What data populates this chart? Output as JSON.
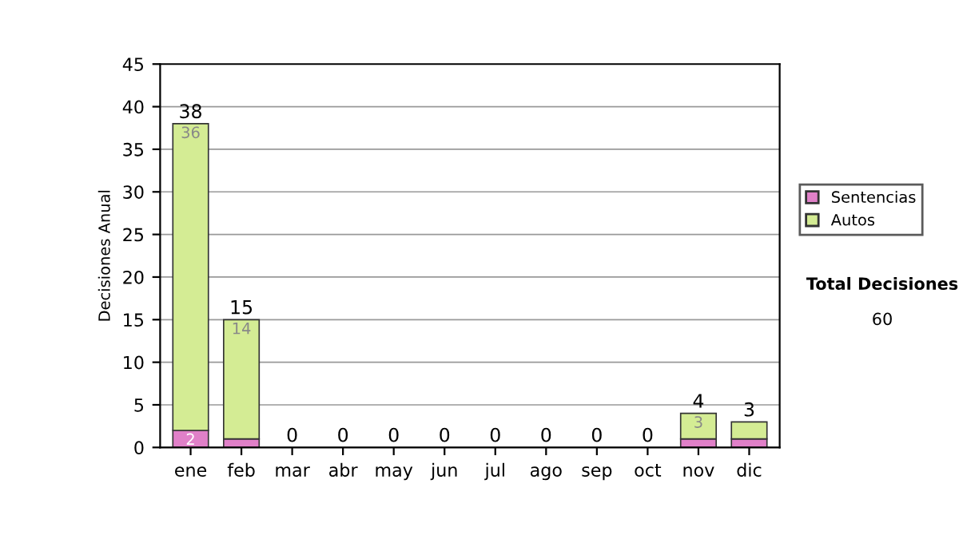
{
  "chart_data": {
    "type": "bar",
    "stacked": true,
    "ylabel": "Decisiones Anual",
    "categories": [
      "ene",
      "feb",
      "mar",
      "abr",
      "may",
      "jun",
      "jul",
      "ago",
      "sep",
      "oct",
      "nov",
      "dic"
    ],
    "series": [
      {
        "name": "Sentencias",
        "color": "#e080c8",
        "values": [
          2,
          1,
          0,
          0,
          0,
          0,
          0,
          0,
          0,
          0,
          1,
          1
        ],
        "value_labels": [
          "2",
          null,
          null,
          null,
          null,
          null,
          null,
          null,
          null,
          null,
          null,
          null
        ]
      },
      {
        "name": "Autos",
        "color": "#d4ec94",
        "values": [
          36,
          14,
          0,
          0,
          0,
          0,
          0,
          0,
          0,
          0,
          3,
          2
        ],
        "value_labels": [
          "36",
          "14",
          null,
          null,
          null,
          null,
          null,
          null,
          null,
          null,
          "3",
          null
        ]
      }
    ],
    "totals": [
      "38",
      "15",
      "0",
      "0",
      "0",
      "0",
      "0",
      "0",
      "0",
      "0",
      "4",
      "3"
    ],
    "ylim": [
      0,
      45
    ],
    "yticks": [
      0,
      5,
      10,
      15,
      20,
      25,
      30,
      35,
      40,
      45
    ],
    "grid": "y",
    "legend": "right",
    "annotations": [
      "Total Decisiones",
      "60"
    ]
  }
}
